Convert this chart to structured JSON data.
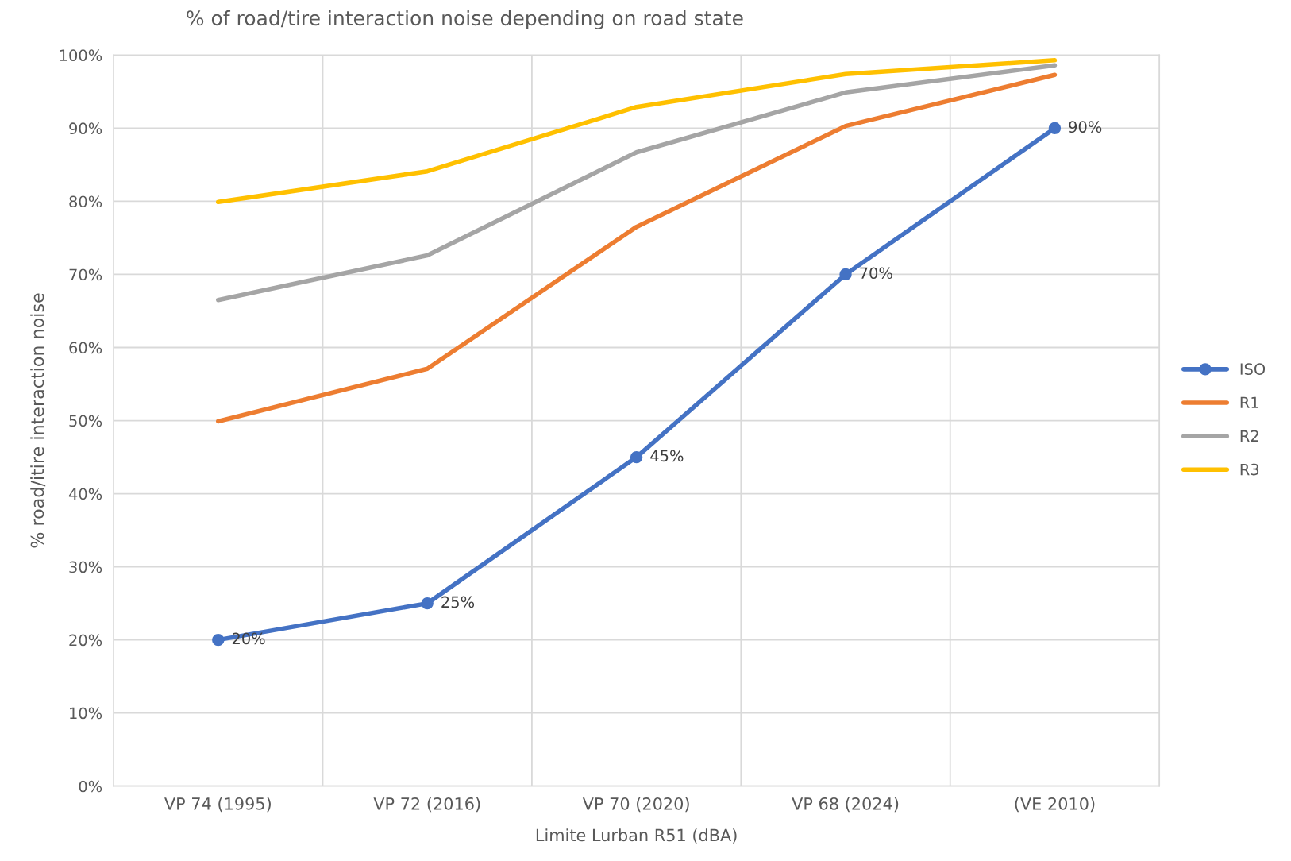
{
  "chart_data": {
    "type": "line",
    "title": "% of road/tire interaction noise depending on road state",
    "xlabel": "Limite Lurban R51 (dBA)",
    "ylabel": "% road/itire interaction noise",
    "categories": [
      "VP 74 (1995)",
      "VP 72 (2016)",
      "VP 70 (2020)",
      "VP 68 (2024)",
      "(VE 2010)"
    ],
    "series": [
      {
        "name": "ISO",
        "color": "#4472c4",
        "marker": "circle",
        "values": [
          20,
          25,
          45,
          70,
          90
        ],
        "value_labels": [
          "20%",
          "25%",
          "45%",
          "70%",
          "90%"
        ]
      },
      {
        "name": "R1",
        "color": "#ed7d31",
        "marker": "none",
        "values": [
          49.9,
          57.1,
          76.5,
          90.3,
          97.3
        ]
      },
      {
        "name": "R2",
        "color": "#a5a5a5",
        "marker": "none",
        "values": [
          66.5,
          72.6,
          86.7,
          94.9,
          98.6
        ]
      },
      {
        "name": "R3",
        "color": "#ffc000",
        "marker": "none",
        "values": [
          79.9,
          84.1,
          92.9,
          97.4,
          99.3
        ]
      }
    ],
    "ylim": [
      0,
      100
    ],
    "yticks": [
      {
        "value": 0,
        "label": "0%"
      },
      {
        "value": 10,
        "label": "10%"
      },
      {
        "value": 20,
        "label": "20%"
      },
      {
        "value": 30,
        "label": "30%"
      },
      {
        "value": 40,
        "label": "40%"
      },
      {
        "value": 50,
        "label": "50%"
      },
      {
        "value": 60,
        "label": "60%"
      },
      {
        "value": 70,
        "label": "70%"
      },
      {
        "value": 80,
        "label": "80%"
      },
      {
        "value": 90,
        "label": "90%"
      },
      {
        "value": 100,
        "label": "100%"
      }
    ],
    "grid": true,
    "legend": "right",
    "line_style": "solid"
  }
}
